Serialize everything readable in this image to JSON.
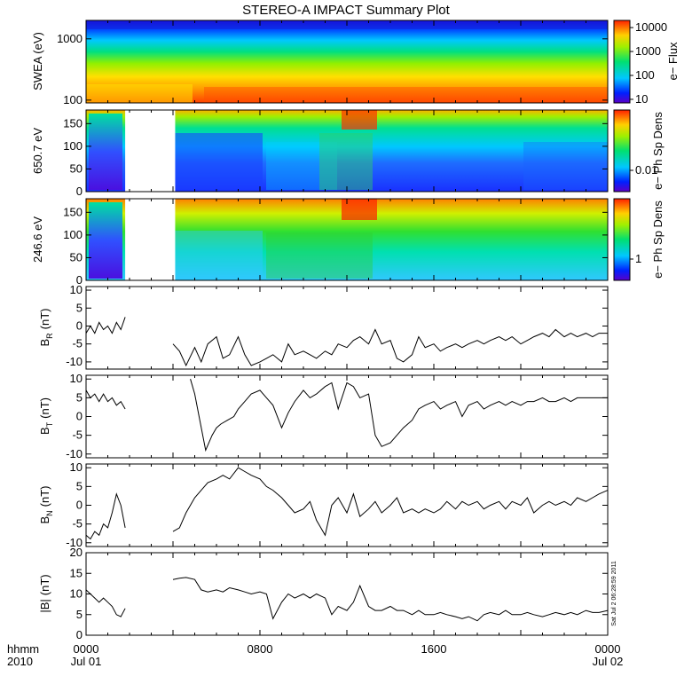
{
  "title": "STEREO-A IMPACT Summary Plot",
  "timestamp_label": "Sat Jul  2 06:28:59 2011",
  "time_axis": {
    "row1_label": "hhmm",
    "row2_label": "2010",
    "ticks": [
      {
        "hour": 0,
        "label": "0000",
        "date": "Jul 01"
      },
      {
        "hour": 8,
        "label": "0800",
        "date": ""
      },
      {
        "hour": 16,
        "label": "1600",
        "date": ""
      },
      {
        "hour": 24,
        "label": "0000",
        "date": "Jul 02"
      }
    ],
    "range_hours": [
      0,
      24
    ],
    "minor_tick_hours": 1
  },
  "chart_data": [
    {
      "type": "heatmap",
      "ylabel": "SWEA (eV)",
      "yscale": "log",
      "ylim": [
        90,
        2000
      ],
      "yticks": [
        "100",
        "1000"
      ],
      "yticks_values": [
        100,
        1000
      ],
      "colorbar": {
        "label": "e− Flux",
        "scale": "log",
        "ticks": [
          "10",
          "100",
          "1000",
          "10000"
        ],
        "tick_values": [
          10,
          100,
          1000,
          10000
        ]
      },
      "data_gaps_hours": []
    },
    {
      "type": "heatmap",
      "ylabel": "650.7 eV",
      "ylim": [
        0,
        180
      ],
      "yticks": [
        "0",
        "50",
        "100",
        "150"
      ],
      "yticks_values": [
        0,
        50,
        100,
        150
      ],
      "colorbar": {
        "label": "e− Ph Sp Dens",
        "ticks": [
          "0.01"
        ],
        "tick_values": [
          0.01
        ]
      },
      "data_gaps_hours": [
        [
          1.8,
          4.1
        ]
      ]
    },
    {
      "type": "heatmap",
      "ylabel": "246.6 eV",
      "ylim": [
        0,
        180
      ],
      "yticks": [
        "0",
        "50",
        "100",
        "150"
      ],
      "yticks_values": [
        0,
        50,
        100,
        150
      ],
      "colorbar": {
        "label": "e− Ph Sp Dens",
        "ticks": [
          "1"
        ],
        "tick_values": [
          1
        ]
      },
      "data_gaps_hours": [
        [
          1.8,
          4.1
        ]
      ]
    },
    {
      "type": "line",
      "ylabel": "B",
      "ylabel_sub": "R",
      "ylabel_unit": "(nT)",
      "ylim": [
        -12,
        11
      ],
      "yticks": [
        "-10",
        "-5",
        "0",
        "5",
        "10"
      ],
      "yticks_values": [
        -10,
        -5,
        0,
        5,
        10
      ],
      "segments": [
        {
          "x": [
            0.0,
            0.2,
            0.4,
            0.6,
            0.8,
            1.0,
            1.2,
            1.4,
            1.6,
            1.8
          ],
          "y": [
            -2,
            0,
            -2,
            1,
            -1,
            0,
            -2,
            1,
            -1,
            2.5
          ]
        },
        {
          "x": [
            4.0,
            4.3,
            4.6,
            5.0,
            5.3,
            5.6,
            6.0,
            6.3,
            6.6,
            7.0,
            7.3,
            7.6,
            8.0,
            8.3,
            8.6,
            9.0,
            9.3,
            9.6,
            10.0,
            10.3,
            10.6,
            11.0,
            11.3,
            11.6,
            12.0,
            12.3,
            12.6,
            13.0,
            13.3,
            13.6,
            14.0,
            14.3,
            14.6,
            15.0,
            15.3,
            15.6,
            16.0,
            16.3,
            16.6,
            17.0,
            17.3,
            17.6,
            18.0,
            18.3,
            18.6,
            19.0,
            19.3,
            19.6,
            20.0,
            20.3,
            20.6,
            21.0,
            21.3,
            21.6,
            22.0,
            22.3,
            22.6,
            23.0,
            23.3,
            23.6,
            24.0
          ],
          "y": [
            -5,
            -7,
            -11,
            -6,
            -10,
            -5,
            -3,
            -9,
            -8,
            -3,
            -8,
            -11,
            -10,
            -9,
            -8,
            -10,
            -5,
            -8,
            -7,
            -8,
            -9,
            -7,
            -8,
            -5,
            -6,
            -4,
            -3,
            -5,
            -1,
            -5,
            -4,
            -9,
            -10,
            -8,
            -3,
            -6,
            -5,
            -7,
            -6,
            -5,
            -6,
            -5,
            -4,
            -5,
            -4,
            -3,
            -4,
            -3,
            -5,
            -4,
            -3,
            -2,
            -3,
            -1,
            -3,
            -2,
            -3,
            -2,
            -3,
            -2,
            -2
          ]
        }
      ]
    },
    {
      "type": "line",
      "ylabel": "B",
      "ylabel_sub": "T",
      "ylabel_unit": "(nT)",
      "ylim": [
        -11,
        11
      ],
      "yticks": [
        "-10",
        "-5",
        "0",
        "5",
        "10"
      ],
      "yticks_values": [
        -10,
        -5,
        0,
        5,
        10
      ],
      "segments": [
        {
          "x": [
            0.0,
            0.2,
            0.4,
            0.6,
            0.8,
            1.0,
            1.2,
            1.4,
            1.6,
            1.8
          ],
          "y": [
            7,
            5,
            6,
            4,
            6,
            4,
            5,
            3,
            4,
            2
          ]
        },
        {
          "x": [
            4.8,
            5.0,
            5.2,
            5.5,
            5.8,
            6.0,
            6.2,
            6.5,
            6.8,
            7.0,
            7.3,
            7.6,
            8.0,
            8.3,
            8.6,
            9.0,
            9.3,
            9.6,
            10.0,
            10.3,
            10.6,
            11.0,
            11.3,
            11.6,
            12.0,
            12.3,
            12.6,
            13.0,
            13.3,
            13.6,
            14.0,
            14.3,
            14.6,
            15.0,
            15.3,
            15.6,
            16.0,
            16.3,
            16.6,
            17.0,
            17.3,
            17.6,
            18.0,
            18.3,
            18.6,
            19.0,
            19.3,
            19.6,
            20.0,
            20.3,
            20.6,
            21.0,
            21.3,
            21.6,
            22.0,
            22.3,
            22.6,
            23.0,
            23.3,
            23.6,
            24.0
          ],
          "y": [
            10,
            6,
            0,
            -9,
            -5,
            -3,
            -2,
            -1,
            0,
            2,
            4,
            6,
            7,
            5,
            3,
            -3,
            1,
            4,
            7,
            5,
            6,
            8,
            9,
            2,
            9,
            8,
            5,
            6,
            -5,
            -8,
            -7,
            -5,
            -3,
            -1,
            2,
            3,
            4,
            2,
            3,
            4,
            0,
            3,
            4,
            2,
            3,
            4,
            3,
            4,
            3,
            4,
            4,
            5,
            4,
            4,
            5,
            4,
            5,
            5,
            5,
            5,
            5
          ]
        }
      ]
    },
    {
      "type": "line",
      "ylabel": "B",
      "ylabel_sub": "N",
      "ylabel_unit": "(nT)",
      "ylim": [
        -11,
        11
      ],
      "yticks": [
        "-10",
        "-5",
        "0",
        "5",
        "10"
      ],
      "yticks_values": [
        -10,
        -5,
        0,
        5,
        10
      ],
      "segments": [
        {
          "x": [
            0.0,
            0.2,
            0.4,
            0.6,
            0.8,
            1.0,
            1.2,
            1.4,
            1.6,
            1.8
          ],
          "y": [
            -8,
            -9,
            -7,
            -8,
            -5,
            -6,
            -2,
            3,
            0,
            -6
          ]
        },
        {
          "x": [
            4.0,
            4.3,
            4.6,
            5.0,
            5.3,
            5.6,
            6.0,
            6.3,
            6.6,
            7.0,
            7.3,
            7.6,
            8.0,
            8.3,
            8.6,
            9.0,
            9.3,
            9.6,
            10.0,
            10.3,
            10.6,
            11.0,
            11.3,
            11.6,
            12.0,
            12.3,
            12.6,
            13.0,
            13.3,
            13.6,
            14.0,
            14.3,
            14.6,
            15.0,
            15.3,
            15.6,
            16.0,
            16.3,
            16.6,
            17.0,
            17.3,
            17.6,
            18.0,
            18.3,
            18.6,
            19.0,
            19.3,
            19.6,
            20.0,
            20.3,
            20.6,
            21.0,
            21.3,
            21.6,
            22.0,
            22.3,
            22.6,
            23.0,
            23.3,
            23.6,
            24.0
          ],
          "y": [
            -7,
            -6,
            -2,
            2,
            4,
            6,
            7,
            8,
            7,
            10,
            9,
            8,
            7,
            5,
            4,
            2,
            0,
            -2,
            -1,
            1,
            -4,
            -8,
            0,
            2,
            -2,
            3,
            -3,
            -1,
            1,
            -2,
            0,
            2,
            -2,
            -1,
            -2,
            -1,
            -2,
            -1,
            1,
            -1,
            1,
            0,
            1,
            -1,
            0,
            1,
            -1,
            1,
            0,
            2,
            -2,
            0,
            1,
            0,
            1,
            0,
            2,
            1,
            2,
            3,
            4
          ]
        }
      ]
    },
    {
      "type": "line",
      "ylabel": "|B|",
      "ylabel_unit": "(nT)",
      "ylim": [
        0,
        20
      ],
      "yticks": [
        "0",
        "5",
        "10",
        "15",
        "20"
      ],
      "yticks_values": [
        0,
        5,
        10,
        15,
        20
      ],
      "segments": [
        {
          "x": [
            0.0,
            0.2,
            0.4,
            0.6,
            0.8,
            1.0,
            1.2,
            1.4,
            1.6,
            1.8
          ],
          "y": [
            11,
            10,
            9,
            8,
            9,
            8,
            7,
            5,
            4.5,
            6.5
          ]
        },
        {
          "x": [
            4.0,
            4.3,
            4.6,
            5.0,
            5.3,
            5.6,
            6.0,
            6.3,
            6.6,
            7.0,
            7.3,
            7.6,
            8.0,
            8.3,
            8.6,
            9.0,
            9.3,
            9.6,
            10.0,
            10.3,
            10.6,
            11.0,
            11.3,
            11.6,
            12.0,
            12.3,
            12.6,
            13.0,
            13.3,
            13.6,
            14.0,
            14.3,
            14.6,
            15.0,
            15.3,
            15.6,
            16.0,
            16.3,
            16.6,
            17.0,
            17.3,
            17.6,
            18.0,
            18.3,
            18.6,
            19.0,
            19.3,
            19.6,
            20.0,
            20.3,
            20.6,
            21.0,
            21.3,
            21.6,
            22.0,
            22.3,
            22.6,
            23.0,
            23.3,
            23.6,
            24.0
          ],
          "y": [
            13.5,
            13.8,
            14,
            13.5,
            11,
            10.5,
            11,
            10.5,
            11.5,
            11,
            10.5,
            10,
            10.5,
            10,
            4,
            8,
            10,
            9,
            10,
            9,
            10,
            9,
            5,
            7,
            6,
            8,
            12,
            7,
            6,
            6,
            7,
            6,
            6,
            5,
            6,
            5,
            5,
            5.5,
            5,
            4.5,
            4,
            4.5,
            3.5,
            5,
            5.5,
            5,
            6,
            5,
            5,
            5.5,
            5,
            4.5,
            5,
            5.5,
            5,
            5.5,
            5,
            6,
            5.5,
            5.5,
            6
          ]
        }
      ]
    }
  ]
}
